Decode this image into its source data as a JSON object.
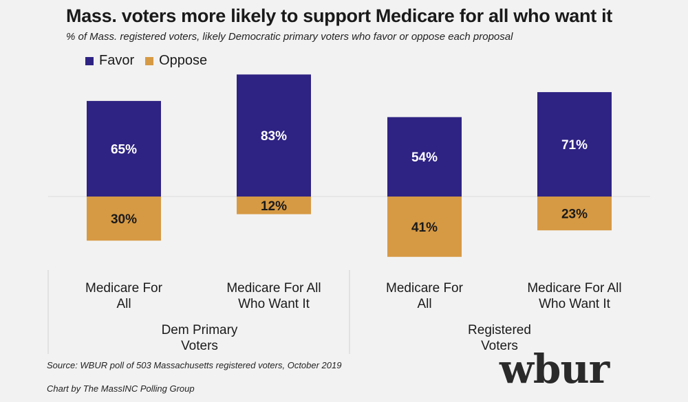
{
  "header": {
    "title": "Mass. voters more likely to support Medicare for all who want it",
    "subtitle": "% of Mass. registered voters, likely Democratic primary voters who favor or oppose each proposal"
  },
  "legend": [
    {
      "label": "Favor",
      "color": "#2e2383"
    },
    {
      "label": "Oppose",
      "color": "#d69a44"
    }
  ],
  "chart_data": {
    "type": "bar",
    "title": "Mass. voters more likely to support Medicare for all who want it",
    "subtitle": "% of Mass. registered voters, likely Democratic primary voters who favor or oppose each proposal",
    "categories": [
      "Medicare For All",
      "Medicare For All Who Want It",
      "Medicare For All",
      "Medicare For All Who Want It"
    ],
    "category_lines": [
      [
        "Medicare For",
        "All"
      ],
      [
        "Medicare For All",
        "Who Want It"
      ],
      [
        "Medicare For",
        "All"
      ],
      [
        "Medicare For All",
        "Who Want It"
      ]
    ],
    "groups": [
      {
        "name": "Dem Primary Voters",
        "lines": [
          "Dem Primary",
          "Voters"
        ],
        "categories": [
          0,
          1
        ]
      },
      {
        "name": "Registered Voters",
        "lines": [
          "Registered",
          "Voters"
        ],
        "categories": [
          2,
          3
        ]
      }
    ],
    "series": [
      {
        "name": "Favor",
        "values": [
          65,
          83,
          54,
          71
        ],
        "labels": [
          "65%",
          "83%",
          "54%",
          "71%"
        ],
        "color": "#2e2383",
        "direction": "up"
      },
      {
        "name": "Oppose",
        "values": [
          30,
          12,
          41,
          23
        ],
        "labels": [
          "30%",
          "12%",
          "41%",
          "23%"
        ],
        "color": "#d69a44",
        "direction": "down"
      }
    ],
    "xlabel": "",
    "ylabel": "",
    "ylim": [
      -45,
      90
    ],
    "grid": false,
    "legend": "top-left"
  },
  "footer": {
    "source": "Source: WBUR poll of 503 Massachusetts registered voters, October 2019",
    "credit": "Chart by The MassINC Polling Group"
  },
  "logo": "wbur"
}
